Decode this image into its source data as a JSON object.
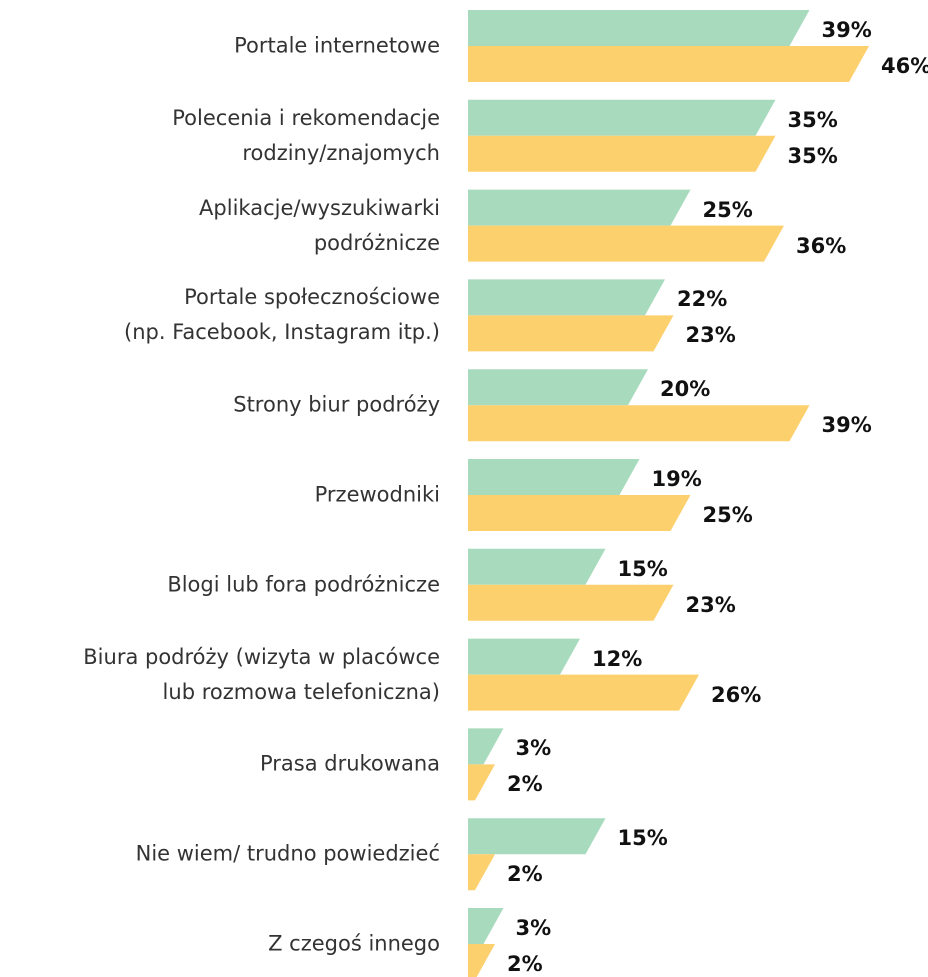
{
  "chart_data": {
    "type": "bar",
    "orientation": "horizontal",
    "categories": [
      "Portale internetowe",
      "Polecenia i rekomendacje\nrodziny/znajomych",
      "Aplikacje/wyszukiwarki\npodróżnicze",
      "Portale społecznościowe\n(np. Facebook, Instagram itp.)",
      "Strony biur podróży",
      "Przewodniki",
      "Blogi lub fora podróżnicze",
      "Biura podróży (wizyta w placówce\nlub rozmowa telefoniczna)",
      "Prasa drukowana",
      "Nie wiem/ trudno powiedzieć",
      "Z czegoś innego"
    ],
    "series": [
      {
        "color": "#a8dbbe",
        "values": [
          39,
          35,
          25,
          22,
          20,
          19,
          15,
          12,
          3,
          15,
          3
        ],
        "value_labels": [
          "39%",
          "35%",
          "25%",
          "22%",
          "20%",
          "19%",
          "15%",
          "12%",
          "3%",
          "15%",
          "3%"
        ]
      },
      {
        "color": "#fdd06e",
        "values": [
          46,
          35,
          36,
          23,
          39,
          25,
          23,
          26,
          2,
          2,
          2
        ],
        "value_labels": [
          "46%",
          "35%",
          "36%",
          "23%",
          "39%",
          "25%",
          "23%",
          "26%",
          "2%",
          "2%",
          "2%"
        ]
      }
    ],
    "xlim": [
      0,
      50
    ]
  }
}
